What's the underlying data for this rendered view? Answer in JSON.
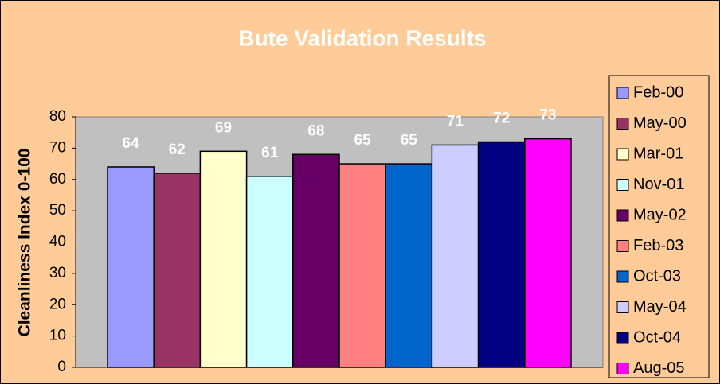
{
  "chart_data": {
    "type": "bar",
    "title": "Bute Validation Results",
    "y_label": "Cleanliness Index 0-100",
    "categories": [
      null
    ],
    "series": [
      {
        "name": "Feb-00",
        "color": "#9999FF",
        "values": [
          64
        ]
      },
      {
        "name": "May-00",
        "color": "#993366",
        "values": [
          62
        ]
      },
      {
        "name": "Mar-01",
        "color": "#FFFFCC",
        "values": [
          69
        ]
      },
      {
        "name": "Nov-01",
        "color": "#CCFFFF",
        "values": [
          61
        ]
      },
      {
        "name": "May-02",
        "color": "#660066",
        "values": [
          68
        ]
      },
      {
        "name": "Feb-03",
        "color": "#FF8080",
        "values": [
          65
        ]
      },
      {
        "name": "Oct-03",
        "color": "#0066CC",
        "values": [
          65
        ]
      },
      {
        "name": "May-04",
        "color": "#CCCCFF",
        "values": [
          71
        ]
      },
      {
        "name": "Oct-04",
        "color": "#000080",
        "values": [
          72
        ]
      },
      {
        "name": "Aug-05",
        "color": "#FF00FF",
        "values": [
          73
        ]
      }
    ],
    "ylim": [
      0,
      80
    ],
    "yticks": [
      0,
      10,
      20,
      30,
      40,
      50,
      60,
      70,
      80
    ],
    "grid": false,
    "legend": "right"
  }
}
